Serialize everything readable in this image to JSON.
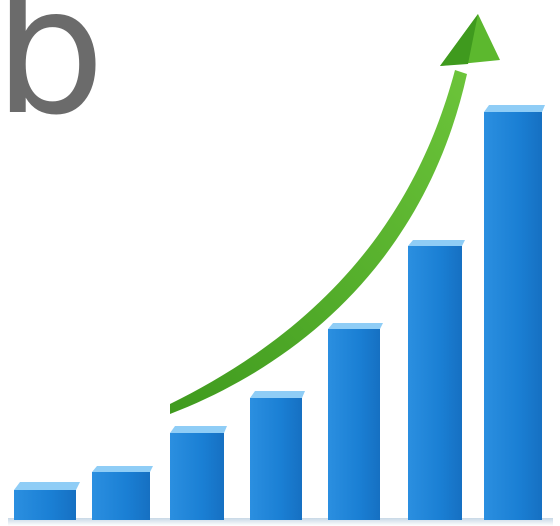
{
  "label": "b"
}
